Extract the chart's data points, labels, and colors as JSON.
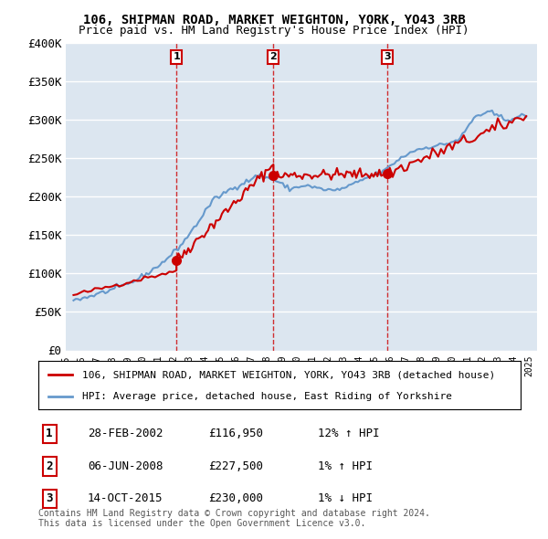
{
  "title": "106, SHIPMAN ROAD, MARKET WEIGHTON, YORK, YO43 3RB",
  "subtitle": "Price paid vs. HM Land Registry's House Price Index (HPI)",
  "property_label": "106, SHIPMAN ROAD, MARKET WEIGHTON, YORK, YO43 3RB (detached house)",
  "hpi_label": "HPI: Average price, detached house, East Riding of Yorkshire",
  "footer": "Contains HM Land Registry data © Crown copyright and database right 2024.\nThis data is licensed under the Open Government Licence v3.0.",
  "transactions": [
    {
      "num": 1,
      "date": "28-FEB-2002",
      "price": "£116,950",
      "hpi": "12% ↑ HPI",
      "year": 2002.16
    },
    {
      "num": 2,
      "date": "06-JUN-2008",
      "price": "£227,500",
      "hpi": "1% ↑ HPI",
      "year": 2008.44
    },
    {
      "num": 3,
      "date": "14-OCT-2015",
      "price": "£230,000",
      "hpi": "1% ↓ HPI",
      "year": 2015.79
    }
  ],
  "transaction_values": [
    116950,
    227500,
    230000
  ],
  "ylim": [
    0,
    400000
  ],
  "yticks": [
    0,
    50000,
    100000,
    150000,
    200000,
    250000,
    300000,
    350000,
    400000
  ],
  "ytick_labels": [
    "£0",
    "£50K",
    "£100K",
    "£150K",
    "£200K",
    "£250K",
    "£300K",
    "£350K",
    "£400K"
  ],
  "property_color": "#cc0000",
  "hpi_color": "#6699cc",
  "background_color": "#ffffff",
  "plot_bg_color": "#dce6f0",
  "grid_color": "#ffffff",
  "vline_color": "#cc0000",
  "year_start": 1995,
  "year_end": 2025
}
